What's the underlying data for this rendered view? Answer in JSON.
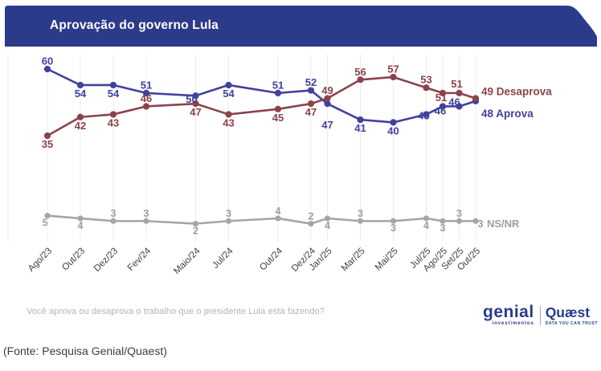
{
  "header": {
    "title": "Aprovação do governo Lula",
    "banner_color": "#2c3a8a",
    "title_color": "#ffffff"
  },
  "chart_data": {
    "type": "line",
    "title": "Aprovação do governo Lula",
    "categories": [
      "Ago/23",
      "Out/23",
      "Dez/23",
      "Fev/24",
      "Maio/24",
      "Jul/24",
      "Out/24",
      "Dez/24",
      "Jan/25",
      "Mar/25",
      "Mai/25",
      "Jul/25",
      "Ago/25",
      "Set/25",
      "Out/25"
    ],
    "month_offsets": [
      0,
      2,
      4,
      6,
      9,
      11,
      14,
      16,
      17,
      19,
      21,
      23,
      24,
      25,
      26
    ],
    "ylim": [
      0,
      65
    ],
    "grid": "vertical-only",
    "gridline_color": "#ececec",
    "axis_label_color": "#3f3f3f",
    "legend_position": "right-of-last-points",
    "series": [
      {
        "name": "Aprova",
        "color": "#41419e",
        "values": [
          60,
          54,
          54,
          51,
          50,
          54,
          51,
          52,
          47,
          41,
          40,
          43,
          46,
          46,
          48
        ],
        "label_sides": [
          "above",
          "below",
          "below",
          "above",
          [
            -5,
            9
          ],
          "below",
          "above",
          "above",
          "below-far",
          "below",
          "below",
          [
            -3,
            6
          ],
          [
            -3,
            10
          ],
          [
            -6,
            -1
          ],
          "legend"
        ]
      },
      {
        "name": "Desaprova",
        "color": "#8b434b",
        "values": [
          35,
          42,
          43,
          46,
          47,
          43,
          45,
          47,
          49,
          56,
          57,
          53,
          51,
          51,
          49
        ],
        "label_sides": [
          "below",
          "below",
          "below",
          "above",
          "below",
          "below",
          "below",
          "below",
          "above",
          "above",
          "above",
          "above",
          [
            -2,
            10
          ],
          [
            -3,
            -7
          ],
          "legend"
        ]
      },
      {
        "name": "NS/NR",
        "color": "#a6a6a6",
        "label_color": "#9e9e9e",
        "values": [
          5,
          4,
          3,
          3,
          2,
          3,
          4,
          2,
          4,
          3,
          3,
          4,
          3,
          3,
          3
        ],
        "label_sides": [
          [
            -3,
            13
          ],
          "below",
          "above",
          "above",
          "below",
          "above",
          "above",
          "above",
          "below",
          "above",
          "below",
          "below",
          "below",
          "above",
          [
            6,
            8
          ]
        ]
      }
    ],
    "legend": [
      {
        "text": "49 Desaprova",
        "color": "#8b434b"
      },
      {
        "text": "48 Aprova",
        "color": "#41419e"
      },
      {
        "text": "NS/NR",
        "color": "#9e9e9e"
      }
    ]
  },
  "footer": {
    "question": "Você aprova ou desaprova o trabalho que o presidente Lula está fazendo?",
    "source": "(Fonte: Pesquisa Genial/Quaest)",
    "logos": {
      "genial": "genial",
      "genial_sub": "investimentos",
      "quaest": "Quæst",
      "quaest_sub": "DATA YOU CAN TRUST"
    }
  }
}
